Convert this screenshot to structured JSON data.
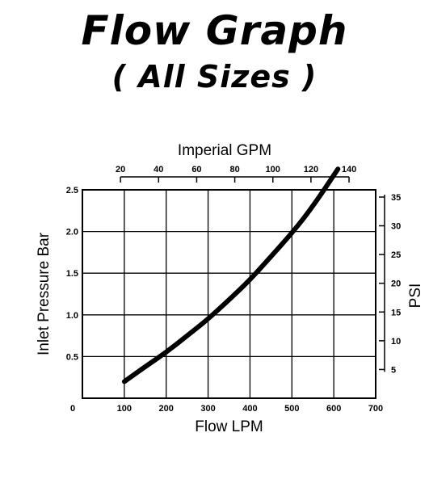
{
  "header": {
    "title": "Flow Graph",
    "subtitle": "( All Sizes )"
  },
  "chart_data": {
    "type": "line",
    "title": "Flow Graph",
    "subtitle": "( All Sizes )",
    "xlabel": "Flow LPM",
    "ylabel": "Inlet Pressure Bar",
    "x2label": "Imperial GPM",
    "y2label": "PSI",
    "xlim": [
      0,
      700
    ],
    "ylim": [
      0,
      2.5
    ],
    "x_ticks": [
      "0",
      "100",
      "200",
      "300",
      "400",
      "500",
      "600",
      "700"
    ],
    "y_ticks": [
      "0.5",
      "1.0",
      "1.5",
      "2.0",
      "2.5"
    ],
    "x2_ticks": [
      {
        "gpm": 20,
        "label": "20"
      },
      {
        "gpm": 40,
        "label": "40"
      },
      {
        "gpm": 60,
        "label": "60"
      },
      {
        "gpm": 80,
        "label": "80"
      },
      {
        "gpm": 100,
        "label": "100"
      },
      {
        "gpm": 120,
        "label": "120"
      },
      {
        "gpm": 140,
        "label": "140"
      }
    ],
    "y2_ticks": [
      {
        "psi": 5,
        "label": "5"
      },
      {
        "psi": 10,
        "label": "10"
      },
      {
        "psi": 15,
        "label": "15"
      },
      {
        "psi": 20,
        "label": "20"
      },
      {
        "psi": 25,
        "label": "25"
      },
      {
        "psi": 30,
        "label": "30"
      },
      {
        "psi": 35,
        "label": "35"
      }
    ],
    "lpm_per_gpm": 4.546,
    "bar_per_psi": 0.06895,
    "grid": true,
    "series": [
      {
        "x": [
          100,
          150,
          200,
          250,
          300,
          350,
          400,
          450,
          500,
          550,
          610
        ],
        "y": [
          0.2,
          0.38,
          0.55,
          0.75,
          0.95,
          1.18,
          1.42,
          1.7,
          1.98,
          2.3,
          2.75
        ]
      }
    ],
    "line_color": "#000000"
  }
}
